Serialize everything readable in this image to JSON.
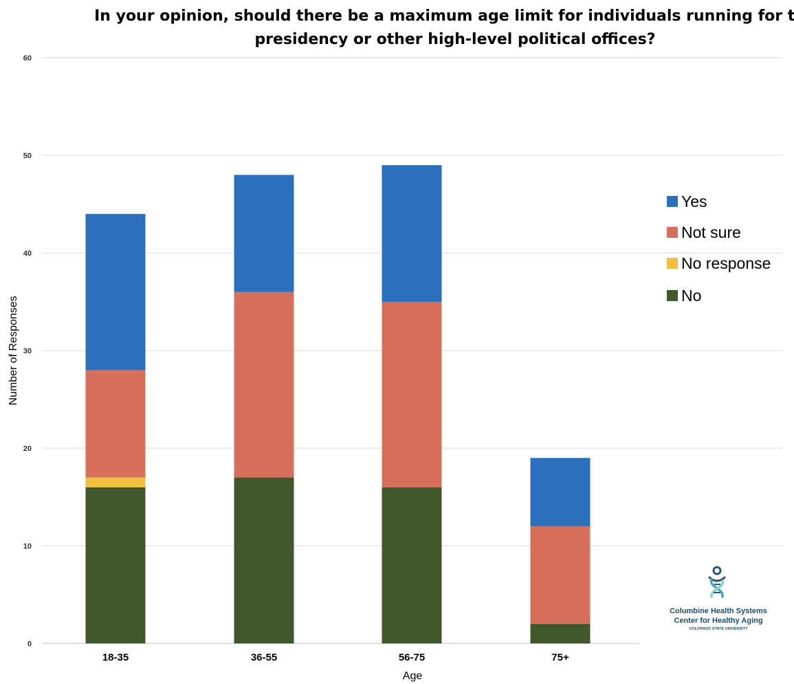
{
  "chart_data": {
    "type": "bar",
    "stacked": true,
    "title_lines": [
      "In your opinion, should there be a maximum age limit for individuals running for the",
      "presidency or other high-level political offices?"
    ],
    "xlabel": "Age",
    "ylabel": "Number of Responses",
    "ylim": [
      0,
      60
    ],
    "yticks": [
      0,
      10,
      20,
      30,
      40,
      50,
      60
    ],
    "grid": true,
    "legend_position": "right",
    "categories": [
      "18-35",
      "36-55",
      "56-75",
      "75+"
    ],
    "series": [
      {
        "name": "No",
        "color": "#40562b",
        "values": [
          16,
          17,
          16,
          2
        ]
      },
      {
        "name": "No response",
        "color": "#f2bf3f",
        "values": [
          1,
          0,
          0,
          0
        ]
      },
      {
        "name": "Not sure",
        "color": "#d6705c",
        "values": [
          11,
          19,
          19,
          10
        ]
      },
      {
        "name": "Yes",
        "color": "#2b6fbd",
        "values": [
          16,
          12,
          14,
          7
        ]
      }
    ],
    "legend_order": [
      "Yes",
      "Not sure",
      "No response",
      "No"
    ]
  },
  "logo": {
    "line1": "Columbine Health Systems",
    "line2": "Center for Healthy Aging",
    "line3": "COLORADO STATE UNIVERSITY",
    "icon": "figure-helix-icon",
    "text_color": "#1e4d6e",
    "icon_colors": [
      "#2a5577",
      "#43a9b5",
      "#8ad0c4"
    ]
  }
}
